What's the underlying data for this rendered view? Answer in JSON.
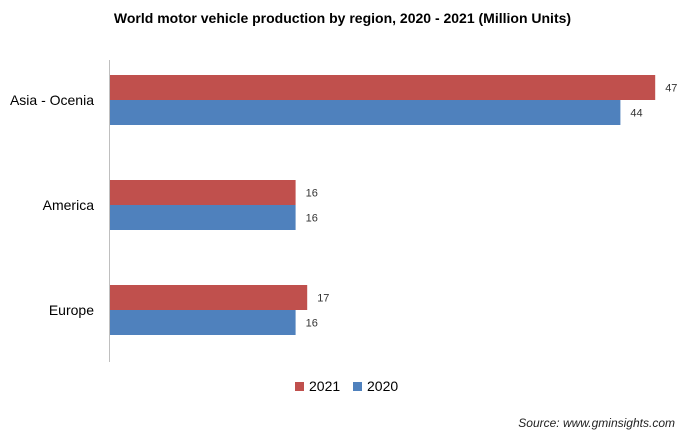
{
  "chart_data": {
    "type": "bar",
    "orientation": "horizontal",
    "title": "World motor vehicle production by region, 2020 - 2021 (Million Units)",
    "categories": [
      "Asia - Ocenia",
      "America",
      "Europe"
    ],
    "series": [
      {
        "name": "2021",
        "color": "#C0504D",
        "values": [
          47,
          16,
          17
        ]
      },
      {
        "name": "2020",
        "color": "#4F81BD",
        "values": [
          44,
          16,
          16
        ]
      }
    ],
    "xlim": [
      0,
      50
    ],
    "grid": false,
    "legend": "bottom",
    "source": "Source: www.gminsights.com"
  }
}
